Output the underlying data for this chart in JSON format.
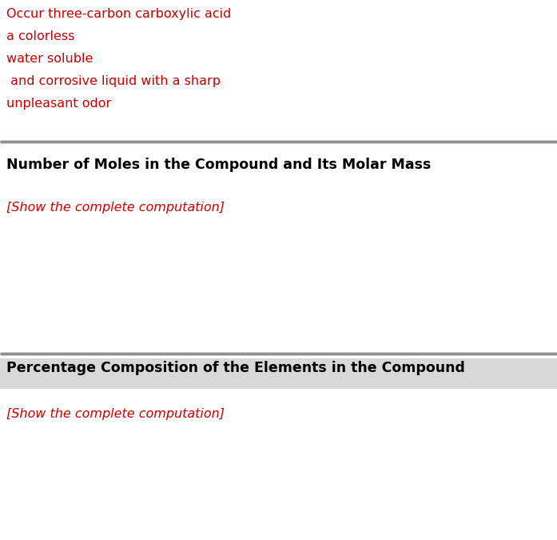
{
  "red_lines": [
    "Occur three-carbon carboxylic acid",
    "a colorless",
    "water soluble",
    " and corrosive liquid with a sharp",
    "unpleasant odor"
  ],
  "red_color": "#cc0000",
  "section1_title": "Number of Moles in the Compound and Its Molar Mass",
  "section1_body": "[Show the complete computation]",
  "section2_title": "Percentage Composition of the Elements in the Compound",
  "section2_body": "[Show the complete computation]",
  "title_color": "#000000",
  "body_color": "#cc0000",
  "bg_color": "#ffffff",
  "section2_header_bg": "#d8d8d8",
  "divider_color": "#666666",
  "red_fontsize": 11.5,
  "title_fontsize": 12.5,
  "body_fontsize": 11.5,
  "fig_width": 6.97,
  "fig_height": 6.75,
  "dpi": 100
}
